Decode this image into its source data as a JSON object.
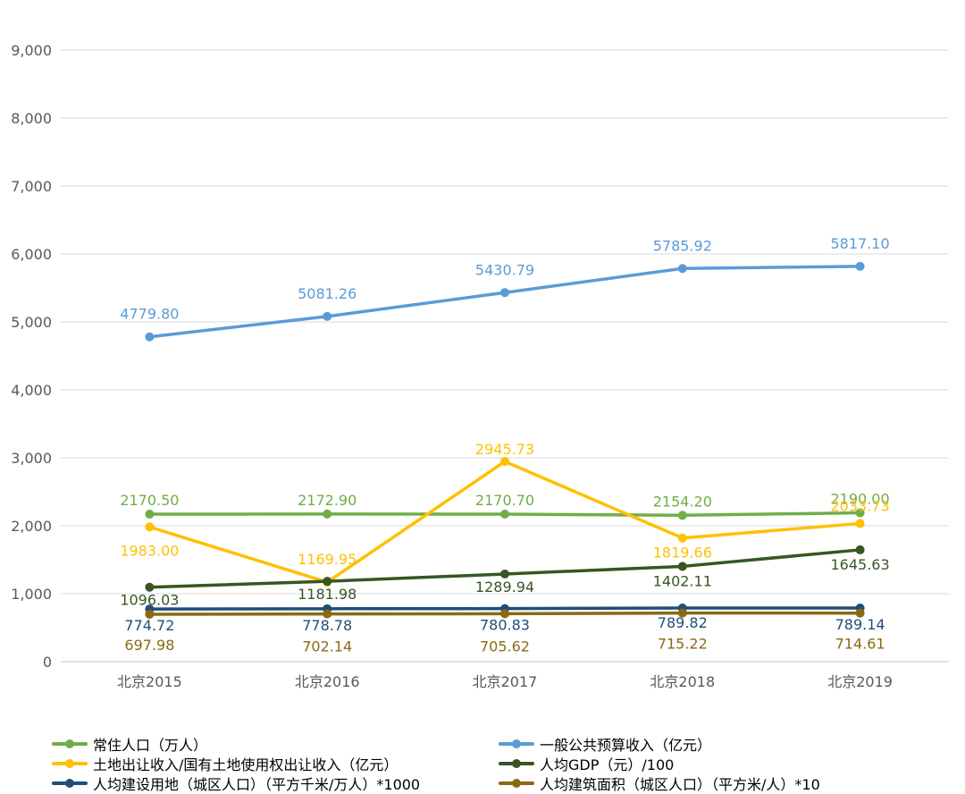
{
  "chart_data": {
    "type": "line",
    "categories": [
      "北京2015",
      "北京2016",
      "北京2017",
      "北京2018",
      "北京2019"
    ],
    "ylim": [
      0,
      9000
    ],
    "yticks": [
      "0",
      "1,000",
      "2,000",
      "3,000",
      "4,000",
      "5,000",
      "6,000",
      "7,000",
      "8,000",
      "9,000"
    ],
    "grid": true,
    "legend_position": "bottom",
    "series": [
      {
        "name": "常住人口（万人）",
        "color": "#70AD47",
        "values": [
          2170.5,
          2172.9,
          2170.7,
          2154.2,
          2190.0
        ],
        "labels": [
          "2170.50",
          "2172.90",
          "2170.70",
          "2154.20",
          "2190.00"
        ]
      },
      {
        "name": "一般公共预算收入（亿元）",
        "color": "#5B9BD5",
        "values": [
          4779.8,
          5081.26,
          5430.79,
          5785.92,
          5817.1
        ],
        "labels": [
          "4779.80",
          "5081.26",
          "5430.79",
          "5785.92",
          "5817.10"
        ]
      },
      {
        "name": "土地出让收入/国有土地使用权出让收入（亿元）",
        "color": "#FFC000",
        "values": [
          1983.0,
          1169.95,
          2945.73,
          1819.66,
          2033.73
        ],
        "labels": [
          "1983.00",
          "1169.95",
          "2945.73",
          "1819.66",
          "2033.73"
        ]
      },
      {
        "name": "人均GDP（元）/100",
        "color": "#375623",
        "values": [
          1096.03,
          1181.98,
          1289.94,
          1402.11,
          1645.63
        ],
        "labels": [
          "1096.03",
          "1181.98",
          "1289.94",
          "1402.11",
          "1645.63"
        ]
      },
      {
        "name": "人均建设用地（城区人口）（平方千米/万人）*1000",
        "color": "#1F4E79",
        "values": [
          774.72,
          778.78,
          780.83,
          789.82,
          789.14
        ],
        "labels": [
          "774.72",
          "778.78",
          "780.83",
          "789.82",
          "789.14"
        ]
      },
      {
        "name": "人均建筑面积（城区人口）（平方米/人）*10",
        "color": "#8B6914",
        "values": [
          697.98,
          702.14,
          705.62,
          715.22,
          714.61
        ],
        "labels": [
          "697.98",
          "702.14",
          "705.62",
          "715.22",
          "714.61"
        ]
      }
    ]
  }
}
